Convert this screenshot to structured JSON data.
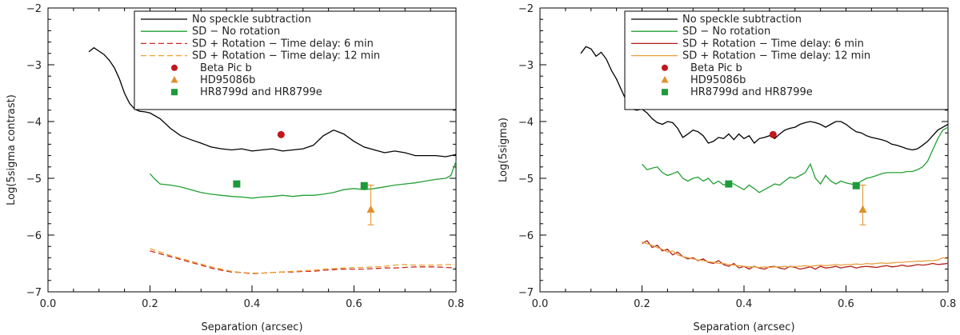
{
  "chart_data": [
    {
      "type": "line",
      "xlabel": "Separation (arcsec)",
      "ylabel": "Log(5sigma contrast)",
      "xlim": [
        0.0,
        0.8
      ],
      "ylim": [
        -7,
        -2
      ],
      "xticks": [
        "0.0",
        "0.2",
        "0.4",
        "0.6",
        "0.8"
      ],
      "yticks": [
        "-7",
        "-6",
        "-5",
        "-4",
        "-3",
        "-2"
      ],
      "grid": false,
      "legend_position": "top-right",
      "series": [
        {
          "name": "No speckle subtraction",
          "color": "#000000",
          "dash": "solid",
          "x": [
            0.08,
            0.09,
            0.1,
            0.11,
            0.12,
            0.13,
            0.14,
            0.15,
            0.16,
            0.17,
            0.18,
            0.19,
            0.2,
            0.22,
            0.24,
            0.26,
            0.28,
            0.3,
            0.32,
            0.34,
            0.36,
            0.38,
            0.4,
            0.42,
            0.44,
            0.46,
            0.48,
            0.5,
            0.52,
            0.54,
            0.56,
            0.58,
            0.6,
            0.62,
            0.64,
            0.66,
            0.68,
            0.7,
            0.72,
            0.74,
            0.76,
            0.78,
            0.8
          ],
          "y": [
            -2.77,
            -2.7,
            -2.76,
            -2.82,
            -2.92,
            -3.05,
            -3.25,
            -3.5,
            -3.68,
            -3.78,
            -3.82,
            -3.83,
            -3.85,
            -3.95,
            -4.12,
            -4.25,
            -4.32,
            -4.38,
            -4.45,
            -4.48,
            -4.5,
            -4.48,
            -4.52,
            -4.5,
            -4.48,
            -4.52,
            -4.5,
            -4.48,
            -4.42,
            -4.25,
            -4.15,
            -4.22,
            -4.35,
            -4.45,
            -4.5,
            -4.55,
            -4.52,
            -4.55,
            -4.6,
            -4.6,
            -4.6,
            -4.62,
            -4.58
          ]
        },
        {
          "name": "SD − No rotation",
          "color": "#22a034",
          "dash": "solid",
          "x": [
            0.2,
            0.21,
            0.22,
            0.24,
            0.26,
            0.28,
            0.3,
            0.32,
            0.34,
            0.36,
            0.38,
            0.4,
            0.42,
            0.44,
            0.46,
            0.48,
            0.5,
            0.52,
            0.54,
            0.56,
            0.58,
            0.6,
            0.62,
            0.64,
            0.66,
            0.68,
            0.7,
            0.72,
            0.74,
            0.76,
            0.78,
            0.79,
            0.8
          ],
          "y": [
            -4.92,
            -5.02,
            -5.1,
            -5.12,
            -5.15,
            -5.2,
            -5.25,
            -5.28,
            -5.3,
            -5.32,
            -5.33,
            -5.35,
            -5.33,
            -5.32,
            -5.3,
            -5.32,
            -5.3,
            -5.3,
            -5.28,
            -5.25,
            -5.2,
            -5.18,
            -5.2,
            -5.18,
            -5.15,
            -5.12,
            -5.1,
            -5.08,
            -5.05,
            -5.02,
            -5.0,
            -4.95,
            -4.7
          ]
        },
        {
          "name": "SD + Rotation − Time delay: 6 min",
          "color": "#cc2a1e",
          "dash": "dashed",
          "x": [
            0.2,
            0.22,
            0.24,
            0.26,
            0.28,
            0.3,
            0.32,
            0.34,
            0.36,
            0.38,
            0.4,
            0.42,
            0.44,
            0.46,
            0.48,
            0.5,
            0.52,
            0.54,
            0.56,
            0.58,
            0.6,
            0.62,
            0.64,
            0.66,
            0.68,
            0.7,
            0.72,
            0.74,
            0.76,
            0.78,
            0.8
          ],
          "y": [
            -6.28,
            -6.33,
            -6.38,
            -6.43,
            -6.48,
            -6.53,
            -6.58,
            -6.62,
            -6.65,
            -6.66,
            -6.68,
            -6.67,
            -6.66,
            -6.65,
            -6.65,
            -6.64,
            -6.64,
            -6.62,
            -6.61,
            -6.6,
            -6.6,
            -6.6,
            -6.59,
            -6.58,
            -6.58,
            -6.57,
            -6.56,
            -6.56,
            -6.56,
            -6.57,
            -6.58
          ]
        },
        {
          "name": "SD + Rotation − Time delay: 12 min",
          "color": "#f0a030",
          "dash": "dashed",
          "x": [
            0.2,
            0.22,
            0.24,
            0.26,
            0.28,
            0.3,
            0.32,
            0.34,
            0.36,
            0.38,
            0.4,
            0.42,
            0.44,
            0.46,
            0.48,
            0.5,
            0.52,
            0.54,
            0.56,
            0.58,
            0.6,
            0.62,
            0.64,
            0.66,
            0.68,
            0.7,
            0.72,
            0.74,
            0.76,
            0.78,
            0.8
          ],
          "y": [
            -6.24,
            -6.3,
            -6.36,
            -6.41,
            -6.46,
            -6.51,
            -6.56,
            -6.6,
            -6.64,
            -6.66,
            -6.67,
            -6.67,
            -6.66,
            -6.65,
            -6.64,
            -6.63,
            -6.62,
            -6.6,
            -6.59,
            -6.58,
            -6.57,
            -6.57,
            -6.56,
            -6.55,
            -6.53,
            -6.52,
            -6.53,
            -6.53,
            -6.53,
            -6.52,
            -6.52
          ]
        }
      ],
      "points": [
        {
          "name": "Beta Pic b",
          "marker": "circle",
          "color": "#c0181c",
          "x": [
            0.457
          ],
          "y": [
            -4.23
          ]
        },
        {
          "name": "HD95086b",
          "marker": "triangle",
          "color": "#e0902a",
          "x": [
            0.633
          ],
          "y": [
            -5.55
          ],
          "yerr_low": [
            -5.82
          ],
          "yerr_high": [
            -5.12
          ]
        },
        {
          "name": "HR8799d and HR8799e",
          "marker": "square",
          "color": "#1e9a3a",
          "x": [
            0.37,
            0.62
          ],
          "y": [
            -5.1,
            -5.13
          ]
        }
      ]
    },
    {
      "type": "line",
      "xlabel": "Separation (arcsec)",
      "ylabel": "Log(5sigma)",
      "xlim": [
        0.0,
        0.8
      ],
      "ylim": [
        -7,
        -2
      ],
      "xticks": [
        "0.0",
        "0.2",
        "0.4",
        "0.6",
        "0.8"
      ],
      "yticks": [
        "-7",
        "-6",
        "-5",
        "-4",
        "-3",
        "-2"
      ],
      "grid": false,
      "legend_position": "top-right",
      "series": [
        {
          "name": "No speckle subtraction",
          "color": "#000000",
          "dash": "solid",
          "x": [
            0.08,
            0.09,
            0.1,
            0.11,
            0.12,
            0.13,
            0.14,
            0.15,
            0.16,
            0.17,
            0.18,
            0.19,
            0.2,
            0.21,
            0.22,
            0.23,
            0.24,
            0.25,
            0.26,
            0.27,
            0.28,
            0.29,
            0.3,
            0.31,
            0.32,
            0.33,
            0.34,
            0.35,
            0.36,
            0.37,
            0.38,
            0.39,
            0.4,
            0.41,
            0.42,
            0.43,
            0.44,
            0.45,
            0.46,
            0.47,
            0.48,
            0.49,
            0.5,
            0.51,
            0.52,
            0.53,
            0.54,
            0.55,
            0.56,
            0.57,
            0.58,
            0.59,
            0.6,
            0.61,
            0.62,
            0.63,
            0.64,
            0.65,
            0.66,
            0.67,
            0.68,
            0.69,
            0.7,
            0.71,
            0.72,
            0.73,
            0.74,
            0.75,
            0.76,
            0.77,
            0.78,
            0.79,
            0.8
          ],
          "y": [
            -2.8,
            -2.68,
            -2.72,
            -2.85,
            -2.78,
            -2.9,
            -3.1,
            -3.25,
            -3.45,
            -3.65,
            -3.78,
            -3.8,
            -3.78,
            -3.85,
            -3.95,
            -4.02,
            -4.05,
            -4.0,
            -4.02,
            -4.12,
            -4.28,
            -4.22,
            -4.15,
            -4.18,
            -4.25,
            -4.38,
            -4.35,
            -4.28,
            -4.3,
            -4.22,
            -4.32,
            -4.22,
            -4.3,
            -4.25,
            -4.38,
            -4.3,
            -4.28,
            -4.25,
            -4.3,
            -4.22,
            -4.15,
            -4.12,
            -4.1,
            -4.05,
            -4.02,
            -4.0,
            -4.02,
            -4.05,
            -4.1,
            -4.05,
            -4.0,
            -4.0,
            -4.05,
            -4.12,
            -4.18,
            -4.2,
            -4.25,
            -4.28,
            -4.3,
            -4.32,
            -4.35,
            -4.4,
            -4.42,
            -4.45,
            -4.48,
            -4.5,
            -4.48,
            -4.42,
            -4.35,
            -4.25,
            -4.15,
            -4.1,
            -4.05
          ]
        },
        {
          "name": "SD − No rotation",
          "color": "#22a034",
          "dash": "solid",
          "x": [
            0.2,
            0.21,
            0.22,
            0.23,
            0.24,
            0.25,
            0.26,
            0.27,
            0.28,
            0.29,
            0.3,
            0.31,
            0.32,
            0.33,
            0.34,
            0.35,
            0.36,
            0.37,
            0.38,
            0.39,
            0.4,
            0.41,
            0.42,
            0.43,
            0.44,
            0.45,
            0.46,
            0.47,
            0.48,
            0.49,
            0.5,
            0.51,
            0.52,
            0.53,
            0.54,
            0.55,
            0.56,
            0.57,
            0.58,
            0.59,
            0.6,
            0.61,
            0.62,
            0.63,
            0.64,
            0.65,
            0.66,
            0.67,
            0.68,
            0.69,
            0.7,
            0.71,
            0.72,
            0.73,
            0.74,
            0.75,
            0.76,
            0.77,
            0.78,
            0.79,
            0.8
          ],
          "y": [
            -4.75,
            -4.85,
            -4.82,
            -4.8,
            -4.9,
            -4.95,
            -4.92,
            -4.88,
            -5.0,
            -5.05,
            -5.0,
            -4.98,
            -5.05,
            -5.0,
            -5.1,
            -5.05,
            -5.12,
            -5.08,
            -5.1,
            -5.15,
            -5.2,
            -5.12,
            -5.18,
            -5.25,
            -5.2,
            -5.15,
            -5.1,
            -5.12,
            -5.05,
            -4.98,
            -5.0,
            -4.95,
            -4.9,
            -4.75,
            -5.0,
            -5.1,
            -4.95,
            -5.05,
            -5.1,
            -5.05,
            -5.08,
            -5.1,
            -5.12,
            -5.05,
            -5.0,
            -4.98,
            -4.95,
            -4.92,
            -4.9,
            -4.9,
            -4.9,
            -4.9,
            -4.88,
            -4.88,
            -4.85,
            -4.8,
            -4.7,
            -4.5,
            -4.3,
            -4.15,
            -4.1
          ]
        },
        {
          "name": "SD + Rotation − Time delay: 6 min",
          "color": "#b01e14",
          "dash": "solid",
          "x": [
            0.2,
            0.21,
            0.22,
            0.23,
            0.24,
            0.25,
            0.26,
            0.27,
            0.28,
            0.29,
            0.3,
            0.31,
            0.32,
            0.33,
            0.34,
            0.35,
            0.36,
            0.37,
            0.38,
            0.39,
            0.4,
            0.41,
            0.42,
            0.43,
            0.44,
            0.45,
            0.46,
            0.47,
            0.48,
            0.49,
            0.5,
            0.51,
            0.52,
            0.53,
            0.54,
            0.55,
            0.56,
            0.57,
            0.58,
            0.59,
            0.6,
            0.61,
            0.62,
            0.63,
            0.64,
            0.65,
            0.66,
            0.67,
            0.68,
            0.69,
            0.7,
            0.71,
            0.72,
            0.73,
            0.74,
            0.75,
            0.76,
            0.77,
            0.78,
            0.79,
            0.8
          ],
          "y": [
            -6.15,
            -6.1,
            -6.22,
            -6.18,
            -6.28,
            -6.25,
            -6.35,
            -6.3,
            -6.38,
            -6.42,
            -6.4,
            -6.45,
            -6.42,
            -6.48,
            -6.5,
            -6.45,
            -6.52,
            -6.55,
            -6.5,
            -6.58,
            -6.55,
            -6.6,
            -6.55,
            -6.58,
            -6.6,
            -6.56,
            -6.55,
            -6.58,
            -6.6,
            -6.55,
            -6.57,
            -6.6,
            -6.58,
            -6.56,
            -6.6,
            -6.55,
            -6.58,
            -6.57,
            -6.55,
            -6.58,
            -6.56,
            -6.55,
            -6.58,
            -6.56,
            -6.55,
            -6.56,
            -6.57,
            -6.55,
            -6.54,
            -6.56,
            -6.55,
            -6.53,
            -6.55,
            -6.54,
            -6.52,
            -6.53,
            -6.52,
            -6.5,
            -6.52,
            -6.51,
            -6.5
          ]
        },
        {
          "name": "SD + Rotation − Time delay: 12 min",
          "color": "#e8a040",
          "dash": "solid",
          "x": [
            0.2,
            0.21,
            0.22,
            0.23,
            0.24,
            0.25,
            0.26,
            0.27,
            0.28,
            0.29,
            0.3,
            0.31,
            0.32,
            0.33,
            0.34,
            0.35,
            0.36,
            0.37,
            0.38,
            0.39,
            0.4,
            0.41,
            0.42,
            0.43,
            0.44,
            0.45,
            0.46,
            0.47,
            0.48,
            0.49,
            0.5,
            0.51,
            0.52,
            0.53,
            0.54,
            0.55,
            0.56,
            0.57,
            0.58,
            0.59,
            0.6,
            0.61,
            0.62,
            0.63,
            0.64,
            0.65,
            0.66,
            0.67,
            0.68,
            0.69,
            0.7,
            0.71,
            0.72,
            0.73,
            0.74,
            0.75,
            0.76,
            0.77,
            0.78,
            0.79,
            0.8
          ],
          "y": [
            -6.12,
            -6.15,
            -6.18,
            -6.22,
            -6.25,
            -6.3,
            -6.28,
            -6.35,
            -6.38,
            -6.4,
            -6.42,
            -6.44,
            -6.45,
            -6.47,
            -6.48,
            -6.5,
            -6.5,
            -6.52,
            -6.53,
            -6.54,
            -6.55,
            -6.56,
            -6.56,
            -6.57,
            -6.56,
            -6.57,
            -6.56,
            -6.56,
            -6.55,
            -6.56,
            -6.55,
            -6.55,
            -6.54,
            -6.55,
            -6.54,
            -6.53,
            -6.54,
            -6.53,
            -6.52,
            -6.53,
            -6.52,
            -6.52,
            -6.51,
            -6.52,
            -6.5,
            -6.51,
            -6.5,
            -6.49,
            -6.5,
            -6.49,
            -6.48,
            -6.48,
            -6.47,
            -6.47,
            -6.46,
            -6.46,
            -6.45,
            -6.45,
            -6.44,
            -6.4,
            -6.42
          ]
        }
      ],
      "points": [
        {
          "name": "Beta Pic b",
          "marker": "circle",
          "color": "#c0181c",
          "x": [
            0.457
          ],
          "y": [
            -4.23
          ]
        },
        {
          "name": "HD95086b",
          "marker": "triangle",
          "color": "#e0902a",
          "x": [
            0.633
          ],
          "y": [
            -5.55
          ],
          "yerr_low": [
            -5.82
          ],
          "yerr_high": [
            -5.12
          ]
        },
        {
          "name": "HR8799d and HR8799e",
          "marker": "square",
          "color": "#1e9a3a",
          "x": [
            0.37,
            0.62
          ],
          "y": [
            -5.1,
            -5.13
          ]
        }
      ]
    }
  ]
}
